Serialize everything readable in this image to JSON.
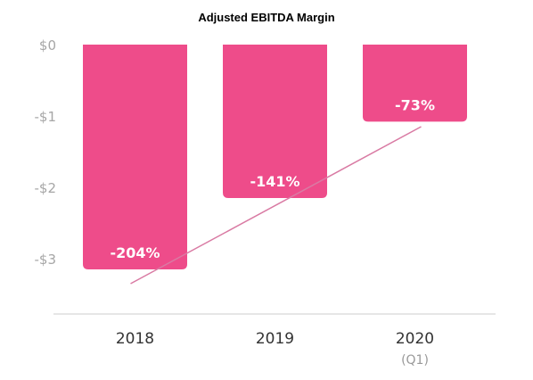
{
  "chart_data": {
    "type": "bar",
    "title": "Adjusted EBITDA Margin",
    "xlabel": "",
    "ylabel": "",
    "categories": [
      "2018",
      "2019",
      "2020"
    ],
    "category_sublabels": [
      "",
      "",
      "(Q1)"
    ],
    "values": [
      -3.15,
      -2.15,
      -1.08
    ],
    "data_labels": [
      "-204%",
      "-141%",
      "-73%"
    ],
    "ylim": [
      -3.6,
      0
    ],
    "yticks": [
      0,
      -1,
      -2,
      -3
    ],
    "ytick_labels": [
      "$0",
      "-$1",
      "-$2",
      "-$3"
    ],
    "grid": false,
    "legend": "none",
    "trend_line": {
      "x_from": "2018",
      "y_from": -3.35,
      "x_to": "2020",
      "y_to": -1.15
    },
    "colors": {
      "bar": "#ee4c8a",
      "trend": "#d97aa3",
      "baseline": "#e6e6e6"
    }
  }
}
